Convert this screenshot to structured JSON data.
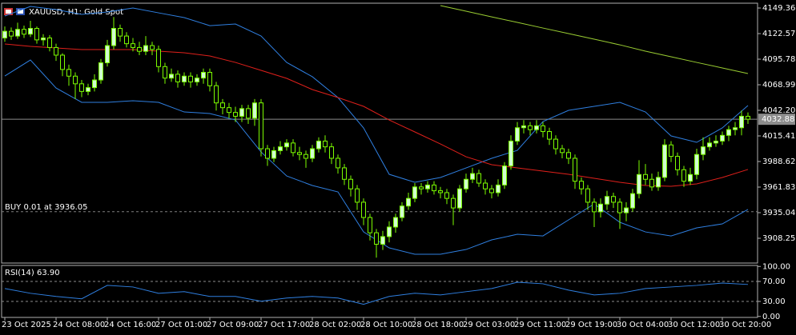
{
  "chart_data": [
    {
      "type": "candlestick",
      "title": "XAUUSD, H1:  Gold Spot",
      "open": [
        4118,
        4125,
        4120,
        4127,
        4122,
        4128,
        4116,
        4118,
        4108,
        4100,
        4085,
        4078,
        4070,
        4062,
        4066,
        4074,
        4092,
        4110,
        4128,
        4120,
        4112,
        4108,
        4104,
        4110,
        4106,
        4088,
        4076,
        4080,
        4072,
        4078,
        4072,
        4076,
        4082,
        4068,
        4050,
        4045,
        4040,
        4036,
        4044,
        4034,
        4050,
        4002,
        3992,
        4000,
        4004,
        4008,
        3998,
        3996,
        3992,
        4002,
        4010,
        4004,
        3992,
        3982,
        3970,
        3960,
        3946,
        3930,
        3914,
        3902,
        3910,
        3920,
        3930,
        3942,
        3950,
        3962,
        3960,
        3964,
        3958,
        3956,
        3950,
        3940,
        3960,
        3970,
        3976,
        3966,
        3960,
        3956,
        3964,
        3984,
        4010,
        4024,
        4026,
        4022,
        4026,
        4020,
        4012,
        4002,
        3998,
        3992,
        3968,
        3960,
        3946,
        3936,
        3944,
        3952,
        3946,
        3935,
        3940,
        3955,
        3975,
        3970,
        3962,
        3972,
        4006,
        3994,
        3980,
        3968,
        3975,
        3996,
        4004,
        4008,
        4010,
        4016,
        4022,
        4024,
        4036
      ],
      "high": [
        4130,
        4129,
        4134,
        4131,
        4136,
        4130,
        4122,
        4121,
        4112,
        4102,
        4090,
        4082,
        4074,
        4070,
        4080,
        4096,
        4116,
        4140,
        4132,
        4124,
        4118,
        4114,
        4120,
        4114,
        4110,
        4092,
        4086,
        4084,
        4082,
        4082,
        4080,
        4086,
        4086,
        4072,
        4054,
        4050,
        4046,
        4048,
        4048,
        4054,
        4054,
        4006,
        4004,
        4010,
        4012,
        4012,
        4004,
        4000,
        4006,
        4014,
        4016,
        4008,
        3996,
        3986,
        3974,
        3964,
        3950,
        3934,
        3918,
        3916,
        3926,
        3934,
        3946,
        3956,
        3966,
        3966,
        3968,
        3968,
        3962,
        3960,
        3954,
        3964,
        3976,
        3982,
        3980,
        3970,
        3964,
        3970,
        3988,
        4016,
        4030,
        4032,
        4030,
        4032,
        4030,
        4024,
        4016,
        4006,
        4002,
        3996,
        3972,
        3964,
        3950,
        3950,
        3958,
        3956,
        3950,
        3946,
        3960,
        3990,
        3986,
        3976,
        3978,
        4012,
        4010,
        3998,
        3984,
        3982,
        4002,
        4014,
        4014,
        4016,
        4020,
        4026,
        4030,
        4042,
        4040
      ],
      "low": [
        4114,
        4116,
        4117,
        4118,
        4119,
        4112,
        4110,
        4104,
        4094,
        4078,
        4068,
        4054,
        4056,
        4058,
        4062,
        4070,
        4088,
        4106,
        4114,
        4108,
        4104,
        4100,
        4100,
        4100,
        4082,
        4070,
        4072,
        4066,
        4068,
        4066,
        4068,
        4070,
        4062,
        4042,
        4038,
        4034,
        4030,
        4030,
        4028,
        4026,
        3994,
        3984,
        3988,
        3996,
        4000,
        3994,
        3990,
        3982,
        3988,
        3998,
        3998,
        3986,
        3976,
        3964,
        3952,
        3938,
        3922,
        3906,
        3888,
        3896,
        3904,
        3914,
        3926,
        3938,
        3946,
        3954,
        3956,
        3954,
        3950,
        3944,
        3922,
        3936,
        3956,
        3966,
        3962,
        3954,
        3950,
        3952,
        3960,
        3980,
        4006,
        4018,
        4016,
        4018,
        4014,
        4006,
        3996,
        3992,
        3986,
        3960,
        3954,
        3938,
        3920,
        3930,
        3938,
        3940,
        3918,
        3926,
        3936,
        3950,
        3964,
        3958,
        3958,
        3968,
        3988,
        3974,
        3962,
        3964,
        3970,
        3990,
        4000,
        4004,
        4006,
        4010,
        4016,
        4016,
        4028
      ],
      "close": [
        4125,
        4120,
        4127,
        4122,
        4128,
        4116,
        4118,
        4108,
        4100,
        4085,
        4078,
        4070,
        4062,
        4066,
        4074,
        4092,
        4110,
        4128,
        4120,
        4112,
        4108,
        4104,
        4110,
        4106,
        4088,
        4076,
        4080,
        4072,
        4078,
        4072,
        4076,
        4082,
        4068,
        4050,
        4045,
        4040,
        4036,
        4044,
        4034,
        4050,
        4002,
        3992,
        4000,
        4004,
        4008,
        3998,
        3996,
        3992,
        4002,
        4010,
        4004,
        3992,
        3982,
        3970,
        3960,
        3946,
        3930,
        3914,
        3902,
        3910,
        3920,
        3930,
        3942,
        3950,
        3962,
        3960,
        3964,
        3958,
        3956,
        3950,
        3940,
        3960,
        3970,
        3976,
        3966,
        3960,
        3956,
        3964,
        3984,
        4010,
        4024,
        4026,
        4022,
        4026,
        4020,
        4012,
        4002,
        3998,
        3992,
        3968,
        3960,
        3946,
        3936,
        3944,
        3952,
        3946,
        3935,
        3940,
        3955,
        3975,
        3970,
        3962,
        3972,
        4006,
        3994,
        3980,
        3968,
        3975,
        3996,
        4004,
        4008,
        4010,
        4016,
        4022,
        4024,
        4036,
        4032.88
      ],
      "up_color": "#d0ffd0",
      "down_color": "#000000",
      "wick_color": "#7cfc00",
      "series": [
        {
          "color": "#2f7fe0",
          "x": [
            0,
            4,
            8,
            12,
            16,
            20,
            24,
            28,
            32,
            36,
            40,
            44,
            48,
            52,
            56,
            60,
            64,
            68,
            72,
            76,
            80,
            84,
            88,
            92,
            96,
            100,
            104,
            108,
            112,
            116
          ],
          "values": [
            4141.0,
            4151.0,
            4147.7,
            4142.7,
            4145.2,
            4149.4,
            4144.3,
            4139.3,
            4130.9,
            4132.6,
            4120.0,
            4092.4,
            4077.4,
            4055.6,
            4023.8,
            3975.2,
            3966.9,
            3971.9,
            3981.9,
            3992.0,
            4000.3,
            4030.5,
            4042.2,
            4046.4,
            4050.6,
            4040.5,
            4015.4,
            4008.7,
            4023.8,
            4047.2
          ]
        },
        {
          "color": "#2f7fe0",
          "x": [
            0,
            4,
            8,
            12,
            16,
            20,
            24,
            28,
            32,
            36,
            40,
            44,
            48,
            52,
            56,
            60,
            64,
            68,
            72,
            76,
            80,
            84,
            88,
            92,
            96,
            100,
            104,
            108,
            112,
            116
          ],
          "values": [
            4078.2,
            4094.9,
            4065.6,
            4050.6,
            4050.6,
            4052.3,
            4050.6,
            4040.5,
            4038.9,
            4032.1,
            3998.6,
            3973.5,
            3963.5,
            3956.8,
            3914.9,
            3898.2,
            3891.5,
            3891.5,
            3896.5,
            3906.6,
            3912.4,
            3910.7,
            3927.5,
            3944.2,
            3925.0,
            3914.9,
            3910.7,
            3919.1,
            3923.3,
            3938.4
          ]
        },
        {
          "color": "#e0201b",
          "x": [
            0,
            4,
            8,
            12,
            16,
            20,
            24,
            28,
            32,
            36,
            40,
            44,
            48,
            52,
            56,
            60,
            64,
            68,
            72,
            76,
            80,
            84,
            88,
            92,
            96,
            100,
            104,
            108,
            112,
            116
          ],
          "values": [
            4111.7,
            4109.2,
            4107.5,
            4105.8,
            4105.8,
            4105.8,
            4104.2,
            4102.5,
            4099.1,
            4092.4,
            4084.1,
            4075.7,
            4064.0,
            4055.6,
            4046.4,
            4032.1,
            4019.6,
            4007.0,
            3993.6,
            3985.3,
            3981.9,
            3978.6,
            3975.2,
            3971.0,
            3966.9,
            3963.5,
            3962.7,
            3965.2,
            3971.9,
            3980.3
          ]
        },
        {
          "color": "#9acd32",
          "x": [
            68,
            72,
            76,
            80,
            84,
            88,
            92,
            96,
            100,
            104,
            108,
            112,
            116
          ],
          "values": [
            4151.9,
            4146.0,
            4140.1,
            4134.3,
            4128.4,
            4122.6,
            4116.7,
            4110.8,
            4104.2,
            4098.3,
            4092.4,
            4086.6,
            4080.7
          ]
        }
      ],
      "current_price": 4032.88,
      "current_price_color": "#8c8c8c",
      "order": {
        "label": "BUY 0.01 at 3936.05",
        "price": 3936.05
      },
      "ylim": [
        3882.3,
        4154.4
      ],
      "yticks": [
        4149.36,
        4122.57,
        4095.78,
        4068.99,
        {
          "value": 4042.2,
          "label": "4042.20"
        },
        4015.41,
        3988.62,
        3961.83,
        3935.04,
        3908.25
      ],
      "xticks": [
        {
          "value": 0,
          "label": "23 Oct 2025"
        },
        {
          "value": 8,
          "label": "24 Oct 08:00"
        },
        {
          "value": 16,
          "label": "24 Oct 16:00"
        },
        {
          "value": 24,
          "label": "27 Oct 01:00"
        },
        {
          "value": 32,
          "label": "27 Oct 09:00"
        },
        {
          "value": 40,
          "label": "27 Oct 17:00"
        },
        {
          "value": 48,
          "label": "28 Oct 02:00"
        },
        {
          "value": 56,
          "label": "28 Oct 10:00"
        },
        {
          "value": 64,
          "label": "28 Oct 18:00"
        },
        {
          "value": 72,
          "label": "29 Oct 03:00"
        },
        {
          "value": 80,
          "label": "29 Oct 11:00"
        },
        {
          "value": 88,
          "label": "29 Oct 19:00"
        },
        {
          "value": 96,
          "label": "30 Oct 04:00"
        },
        {
          "value": 104,
          "label": "30 Oct 12:00"
        },
        {
          "value": 112,
          "label": "30 Oct 20:00"
        }
      ]
    },
    {
      "type": "line",
      "title": "RSI(14) 63.90",
      "color": "#2f7fe0",
      "x": [
        0,
        4,
        8,
        12,
        16,
        20,
        24,
        28,
        32,
        36,
        40,
        44,
        48,
        52,
        56,
        60,
        64,
        68,
        72,
        76,
        80,
        84,
        88,
        92,
        96,
        100,
        104,
        108,
        112,
        116
      ],
      "values": [
        55.8,
        46.3,
        40.0,
        35.2,
        62.1,
        58.9,
        46.3,
        49.5,
        40.0,
        40.0,
        30.5,
        36.8,
        40.0,
        36.8,
        24.2,
        40.0,
        46.3,
        43.1,
        49.5,
        55.8,
        68.4,
        65.3,
        52.6,
        43.1,
        46.3,
        55.8,
        58.9,
        62.1,
        66.8,
        63.9
      ],
      "ylim": [
        -2,
        102
      ],
      "yticks": [
        {
          "value": 100,
          "label": "100.00"
        },
        {
          "value": 70,
          "label": "70.00"
        },
        {
          "value": 30,
          "label": "30.00"
        },
        {
          "value": 0,
          "label": "0.00"
        }
      ],
      "grid": "dashed"
    }
  ]
}
